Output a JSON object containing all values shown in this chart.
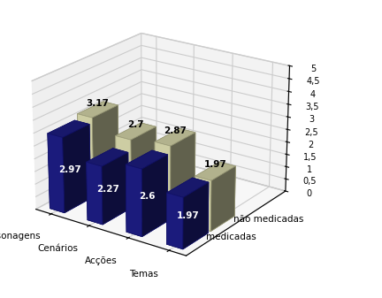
{
  "categories": [
    "Personagens",
    "Cenários",
    "Acções",
    "Temas"
  ],
  "medicadas": [
    2.97,
    2.27,
    2.6,
    1.97
  ],
  "nao_medicadas": [
    3.17,
    2.7,
    2.87,
    1.97
  ],
  "bar_color_medicadas": "#1f1f8c",
  "bar_color_nao_medicadas": "#e8e8b8",
  "bar_edge_color_medicadas": "#111166",
  "bar_edge_color_nao_medicadas": "#999977",
  "ylim": [
    0,
    5
  ],
  "yticks": [
    0,
    0.5,
    1,
    1.5,
    2,
    2.5,
    3,
    3.5,
    4,
    4.5,
    5
  ],
  "ytick_labels": [
    "0",
    "0,5",
    "1",
    "1,5",
    "2",
    "2,5",
    "3",
    "3,5",
    "4",
    "4,5",
    "5"
  ],
  "legend_medicadas": "medicadas",
  "legend_nao_medicadas": "não medicadas",
  "label_fontsize": 7.5,
  "tick_fontsize": 7,
  "bar_label_fontsize": 7.5,
  "background_color": "#ffffff",
  "elev": 22,
  "azim": -55
}
